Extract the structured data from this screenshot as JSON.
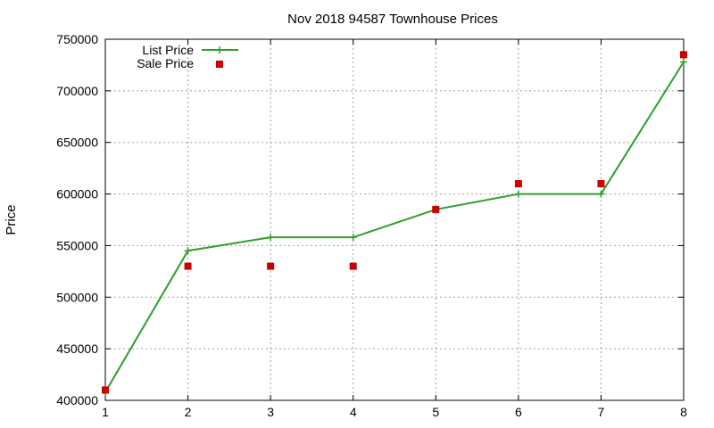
{
  "chart_data": {
    "type": "line",
    "title": "Nov 2018 94587 Townhouse Prices",
    "xlabel": "",
    "ylabel": "Price",
    "x": [
      1,
      2,
      3,
      4,
      5,
      6,
      7,
      8
    ],
    "xlim": [
      1,
      8
    ],
    "ylim": [
      400000,
      750000
    ],
    "xticks": [
      1,
      2,
      3,
      4,
      5,
      6,
      7,
      8
    ],
    "yticks": [
      400000,
      450000,
      500000,
      550000,
      600000,
      650000,
      700000,
      750000
    ],
    "grid": true,
    "legend_position": "top-left",
    "series": [
      {
        "name": "List Price",
        "style": "line-with-plus-markers",
        "color": "#2ca02c",
        "values": [
          408000,
          545000,
          558000,
          558000,
          585000,
          600000,
          600000,
          728000
        ]
      },
      {
        "name": "Sale Price",
        "style": "square-markers",
        "color": "#cc0000",
        "values": [
          410000,
          530000,
          530000,
          530000,
          585000,
          610000,
          610000,
          735000
        ]
      }
    ]
  }
}
